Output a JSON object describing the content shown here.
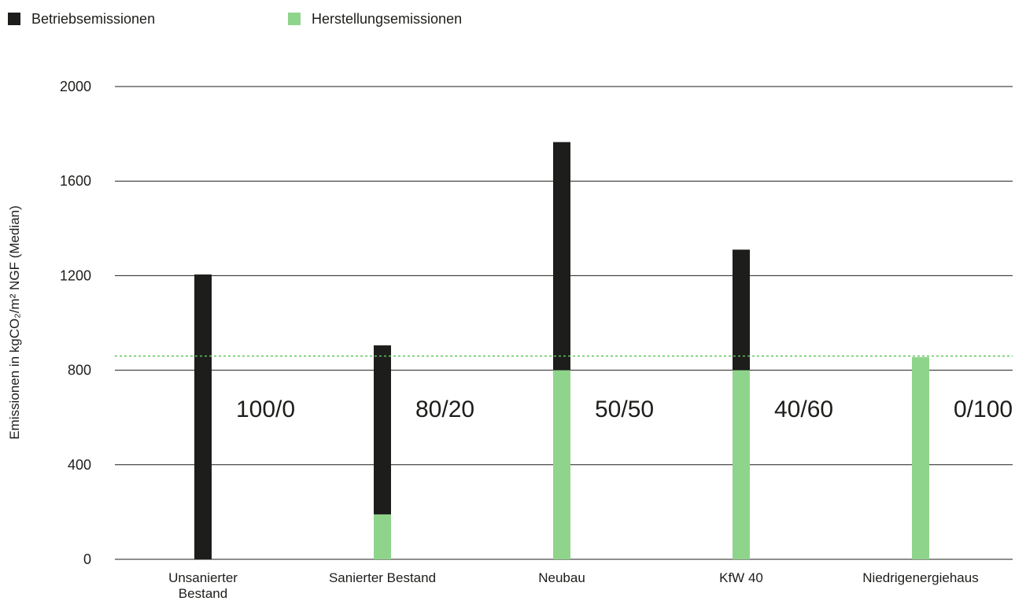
{
  "legend": {
    "items": [
      {
        "label": "Betriebsemissionen",
        "color": "#1d1d1b"
      },
      {
        "label": "Herstellungsemissionen",
        "color": "#8fd48b"
      }
    ]
  },
  "chart_data": {
    "type": "bar",
    "stacked": true,
    "categories": [
      "Unsanierter Bestand",
      "Sanierter Bestand",
      "Neubau",
      "KfW 40",
      "Niedrigenergiehaus"
    ],
    "series": [
      {
        "name": "Herstellungsemissionen",
        "color": "#8fd48b",
        "values": [
          0,
          190,
          800,
          800,
          855
        ]
      },
      {
        "name": "Betriebsemissionen",
        "color": "#1d1d1b",
        "values": [
          1205,
          715,
          965,
          510,
          0
        ]
      }
    ],
    "annotations": [
      "100/0",
      "80/20",
      "50/50",
      "40/60",
      "0/100"
    ],
    "reference_line": {
      "value": 860,
      "style": "dotted",
      "color": "#5cc65a"
    },
    "ylabel": "Emissionen in kgCO₂/m² NGF (Median)",
    "xlabel": "",
    "ylim": [
      0,
      2000
    ],
    "yticks": [
      0,
      400,
      800,
      1200,
      1600,
      2000
    ],
    "grid": true,
    "legend_position": "top-left"
  }
}
